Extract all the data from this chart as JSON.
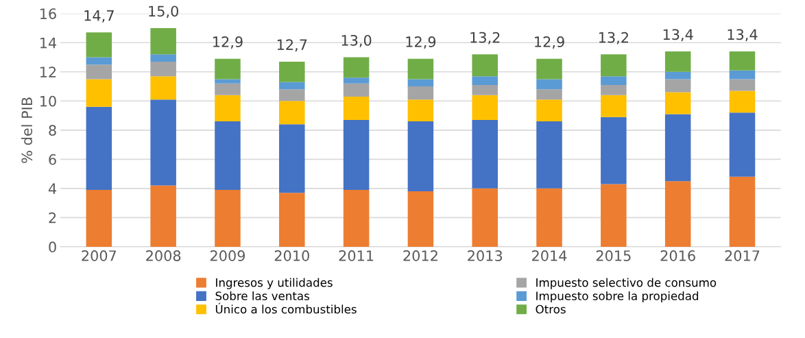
{
  "chart_data": {
    "type": "bar",
    "stacked": true,
    "ylabel": "% del PIB",
    "categories": [
      "2007",
      "2008",
      "2009",
      "2010",
      "2011",
      "2012",
      "2013",
      "2014",
      "2015",
      "2016",
      "2017"
    ],
    "series": [
      {
        "name": "Ingresos y utilidades",
        "color": "#ed7d31",
        "values": [
          3.9,
          4.2,
          3.9,
          3.7,
          3.9,
          3.8,
          4.0,
          4.0,
          4.3,
          4.5,
          4.8
        ]
      },
      {
        "name": "Sobre las ventas",
        "color": "#4472c4",
        "values": [
          5.7,
          5.9,
          4.7,
          4.7,
          4.8,
          4.8,
          4.7,
          4.6,
          4.6,
          4.6,
          4.4
        ]
      },
      {
        "name": "Único a los combustibles",
        "color": "#ffc000",
        "values": [
          1.9,
          1.6,
          1.8,
          1.6,
          1.6,
          1.5,
          1.7,
          1.5,
          1.5,
          1.5,
          1.5
        ]
      },
      {
        "name": "Impuesto selectivo de consumo",
        "color": "#a5a5a5",
        "values": [
          1.0,
          1.0,
          0.8,
          0.8,
          0.9,
          0.9,
          0.7,
          0.7,
          0.7,
          0.9,
          0.8
        ]
      },
      {
        "name": "Impuesto sobre la propiedad",
        "color": "#5b9bd5",
        "values": [
          0.5,
          0.5,
          0.3,
          0.5,
          0.4,
          0.5,
          0.6,
          0.7,
          0.6,
          0.5,
          0.6
        ]
      },
      {
        "name": "Otros",
        "color": "#70ad47",
        "values": [
          1.7,
          1.8,
          1.4,
          1.4,
          1.4,
          1.4,
          1.5,
          1.4,
          1.5,
          1.4,
          1.3
        ]
      }
    ],
    "totals": [
      "14,7",
      "15,0",
      "12,9",
      "12,7",
      "13,0",
      "12,9",
      "13,2",
      "12,9",
      "13,2",
      "13,4",
      "13,4"
    ],
    "ylim": [
      0,
      16
    ],
    "yticks": [
      0,
      2,
      4,
      6,
      8,
      10,
      12,
      14,
      16
    ],
    "grid": "y",
    "legend": "bottom"
  }
}
